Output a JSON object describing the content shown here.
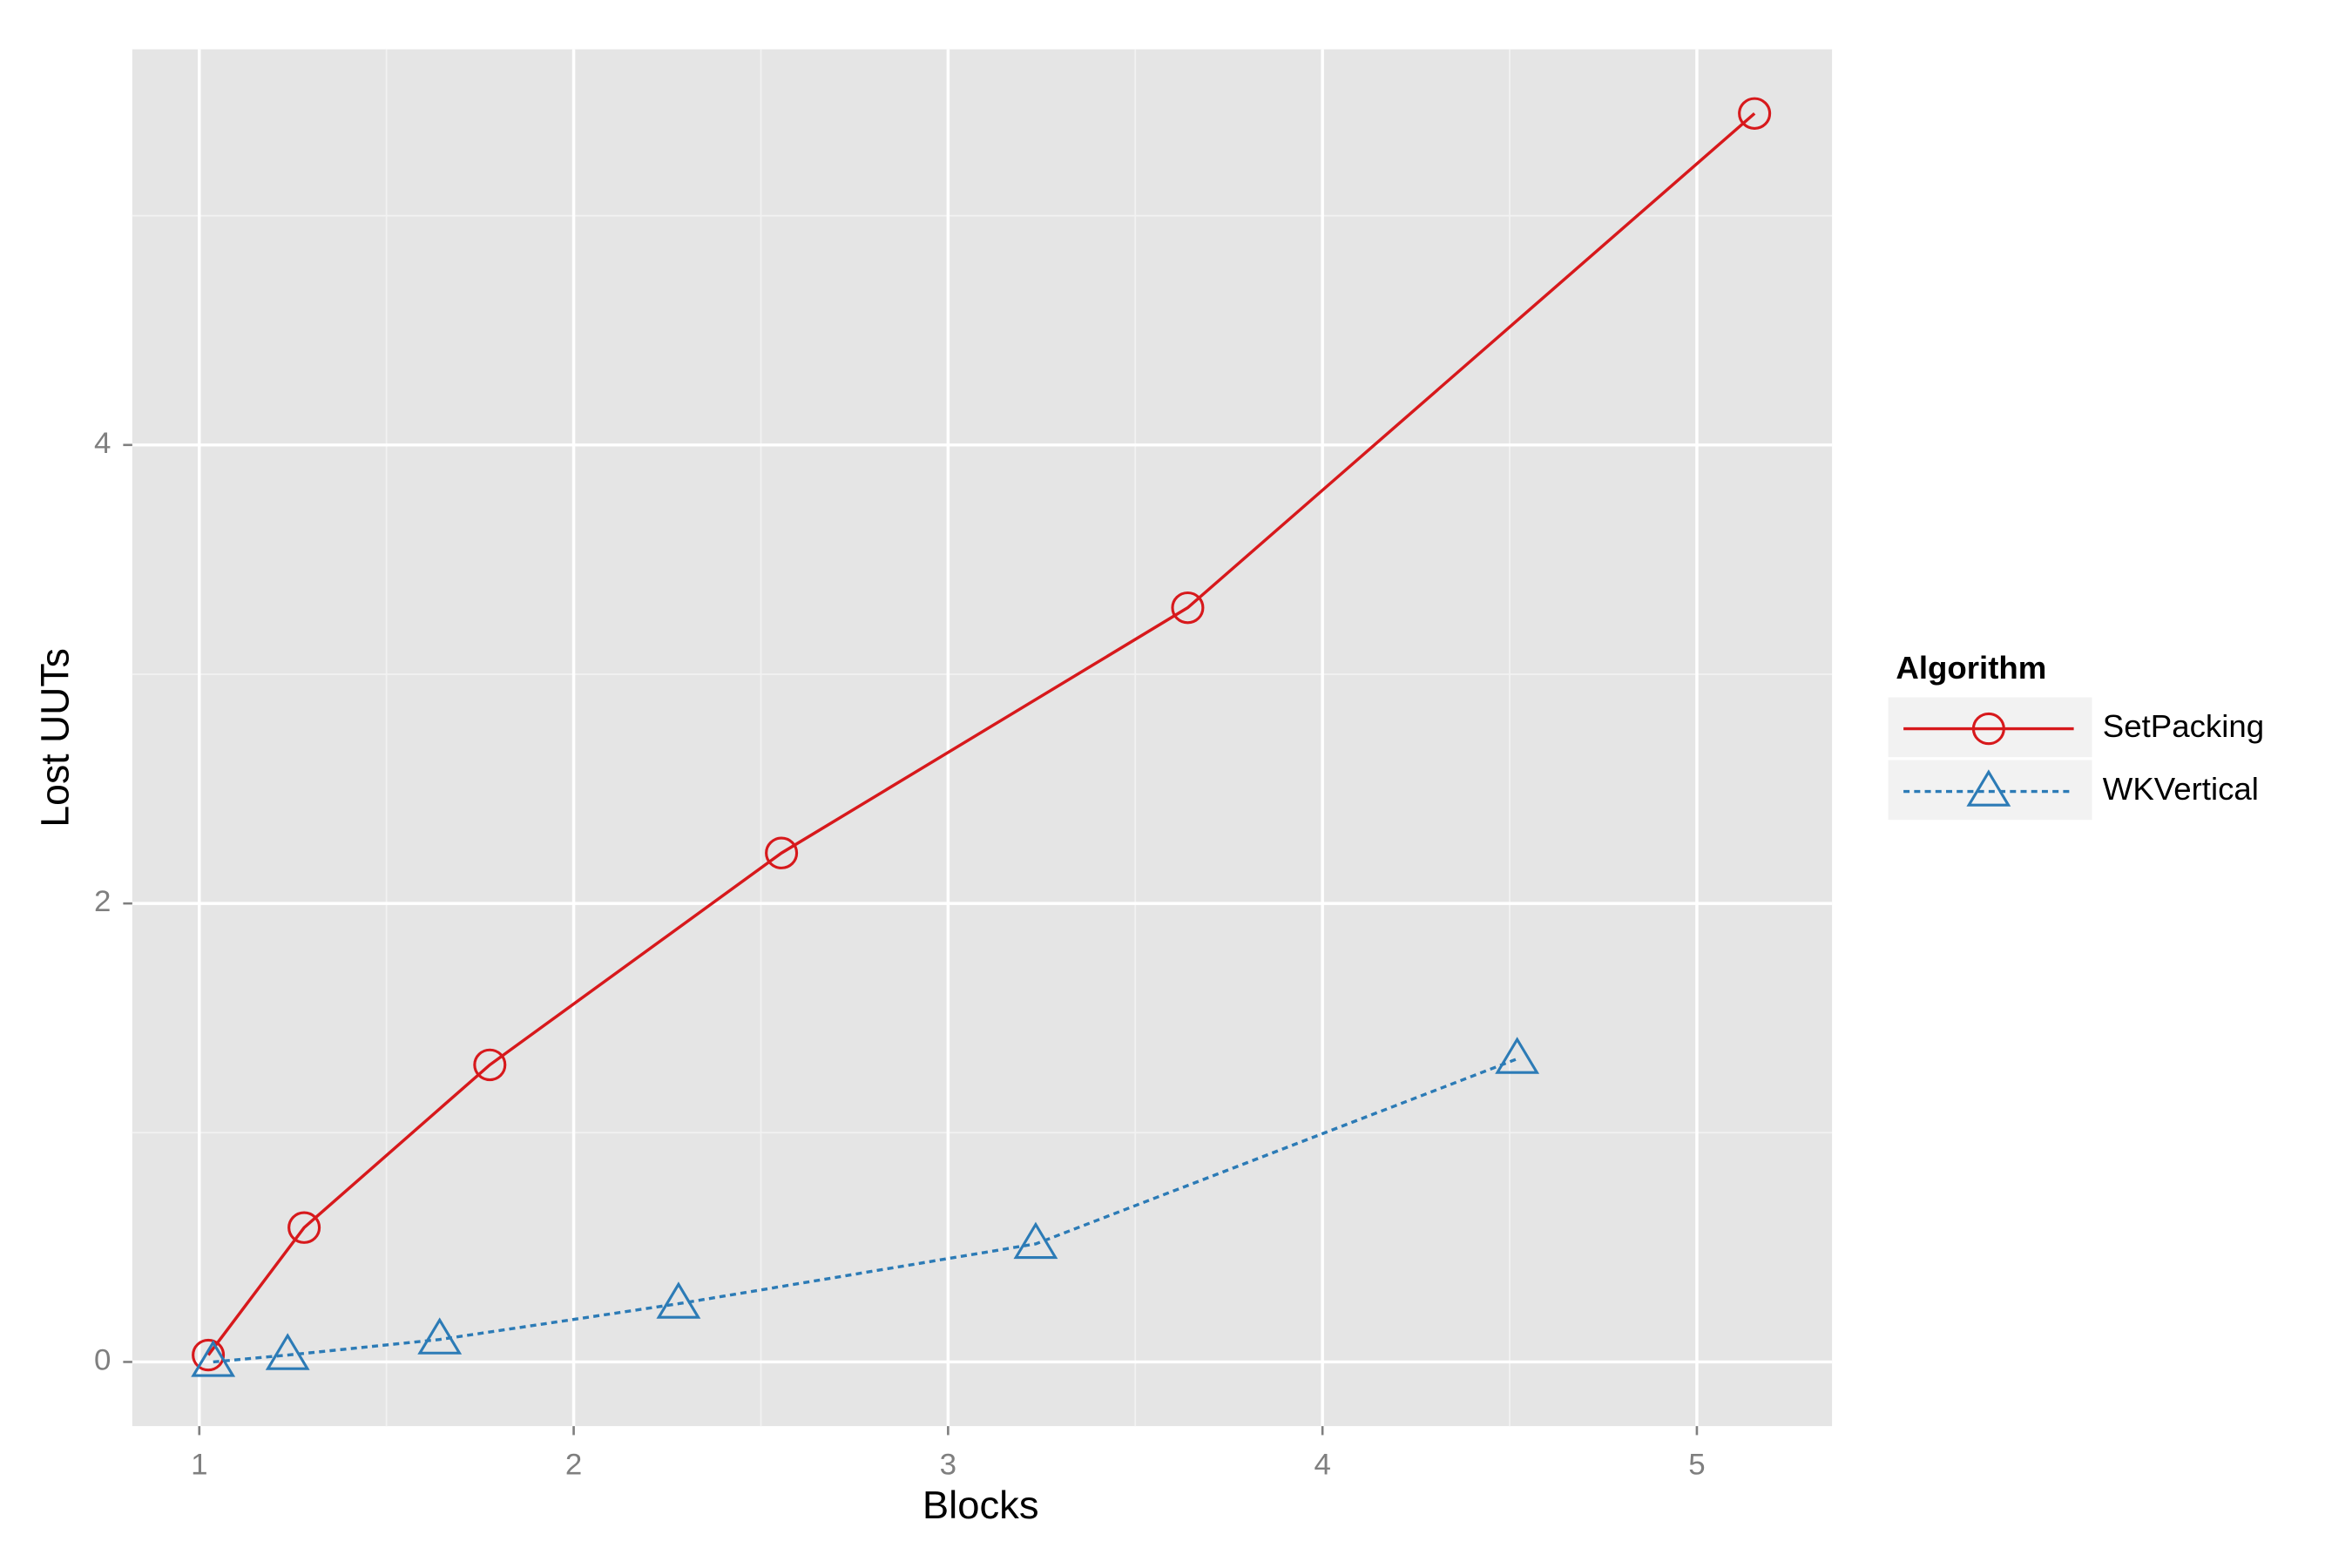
{
  "chart_data": {
    "type": "line",
    "x_label": "Blocks",
    "y_label": "Lost UUTs",
    "legend_title": "Algorithm",
    "legend_position": "right",
    "xlim": [
      0.821,
      5.361
    ],
    "ylim": [
      -0.28,
      5.726
    ],
    "xticks": [
      1,
      2,
      3,
      4,
      5
    ],
    "yticks": [
      0,
      2,
      4
    ],
    "x_minor_ticks": [
      1.5,
      2.5,
      3.5,
      4.5
    ],
    "y_minor_ticks": [
      1,
      3,
      5
    ],
    "grid": true,
    "series": [
      {
        "name": "SetPacking",
        "color": "#d7191c",
        "marker": "circle",
        "dash": "solid",
        "x": [
          1.024,
          1.28,
          1.776,
          2.555,
          3.64,
          5.154
        ],
        "values": [
          0.03,
          0.586,
          1.296,
          2.22,
          3.29,
          5.446
        ]
      },
      {
        "name": "WKVertical",
        "color": "#2c7bb6",
        "marker": "triangle",
        "dash": "dotted",
        "x": [
          1.037,
          1.236,
          1.642,
          2.28,
          3.234,
          4.52
        ],
        "values": [
          0.0,
          0.03,
          0.098,
          0.254,
          0.515,
          1.322
        ]
      }
    ]
  }
}
